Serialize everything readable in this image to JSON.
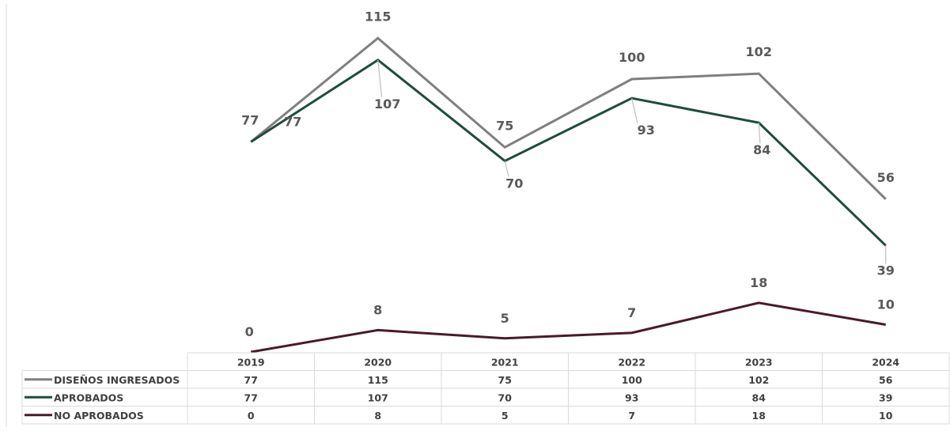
{
  "chart_data": {
    "type": "line",
    "categories": [
      "2019",
      "2020",
      "2021",
      "2022",
      "2023",
      "2024"
    ],
    "series": [
      {
        "name": "DISEÑOS INGRESADOS",
        "values": [
          77,
          115,
          75,
          100,
          102,
          56
        ],
        "color": "#7f7f7f"
      },
      {
        "name": "APROBADOS",
        "values": [
          77,
          107,
          70,
          93,
          84,
          39
        ],
        "color": "#1f4d3a"
      },
      {
        "name": "NO APROBADOS",
        "values": [
          0,
          8,
          5,
          7,
          18,
          10
        ],
        "color": "#4a1a28"
      }
    ],
    "data_labels": {
      "DISEÑOS INGRESADOS": [
        "77",
        "115",
        "75",
        "100",
        "102",
        "56"
      ],
      "APROBADOS": [
        "77",
        "107",
        "70",
        "93",
        "84",
        "39"
      ],
      "NO APROBADOS": [
        "0",
        "8",
        "5",
        "7",
        "18",
        "10"
      ]
    },
    "legend_placement": "data table below chart",
    "grid": false,
    "title": "",
    "xlabel": "",
    "ylabel": ""
  }
}
